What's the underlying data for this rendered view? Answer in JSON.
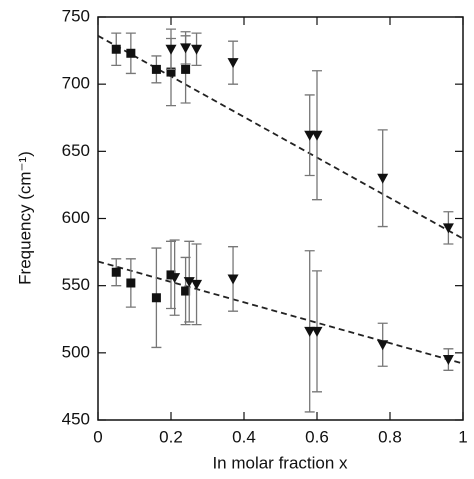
{
  "chart_data": {
    "type": "scatter",
    "x_label": "In molar fraction x",
    "y_label": "Frequency (cm⁻¹)",
    "xlim": [
      0,
      1
    ],
    "ylim": [
      450,
      750
    ],
    "xticks": [
      0,
      0.2,
      0.4,
      0.6,
      0.8,
      1
    ],
    "yticks": [
      450,
      500,
      550,
      600,
      650,
      700,
      750
    ],
    "marker_color": "#111111",
    "error_color": "#777777",
    "series": [
      {
        "marker": "square",
        "x": [
          0.05,
          0.09,
          0.16,
          0.2,
          0.24
        ],
        "values": [
          726,
          723,
          711,
          709,
          711
        ],
        "errors": [
          12,
          15,
          10,
          25,
          25
        ]
      },
      {
        "marker": "square",
        "x": [
          0.05,
          0.09,
          0.16,
          0.2,
          0.24
        ],
        "values": [
          560,
          552,
          541,
          558,
          546
        ],
        "errors": [
          10,
          18,
          37,
          25,
          25
        ]
      },
      {
        "marker": "triangle",
        "x": [
          0.2,
          0.24,
          0.27,
          0.37,
          0.58,
          0.6,
          0.78,
          0.96
        ],
        "values": [
          726,
          727,
          726,
          716,
          662,
          662,
          630,
          593
        ],
        "errors": [
          15,
          12,
          12,
          16,
          30,
          48,
          36,
          12
        ]
      },
      {
        "marker": "triangle",
        "x": [
          0.21,
          0.25,
          0.27,
          0.37,
          0.58,
          0.6,
          0.78,
          0.96
        ],
        "values": [
          556,
          553,
          551,
          555,
          516,
          516,
          506,
          495
        ],
        "errors": [
          28,
          30,
          30,
          24,
          60,
          45,
          16,
          8
        ]
      }
    ],
    "fits": [
      {
        "x": [
          0,
          1
        ],
        "values": [
          736,
          585
        ]
      },
      {
        "x": [
          0,
          1
        ],
        "values": [
          568,
          492
        ]
      }
    ]
  }
}
